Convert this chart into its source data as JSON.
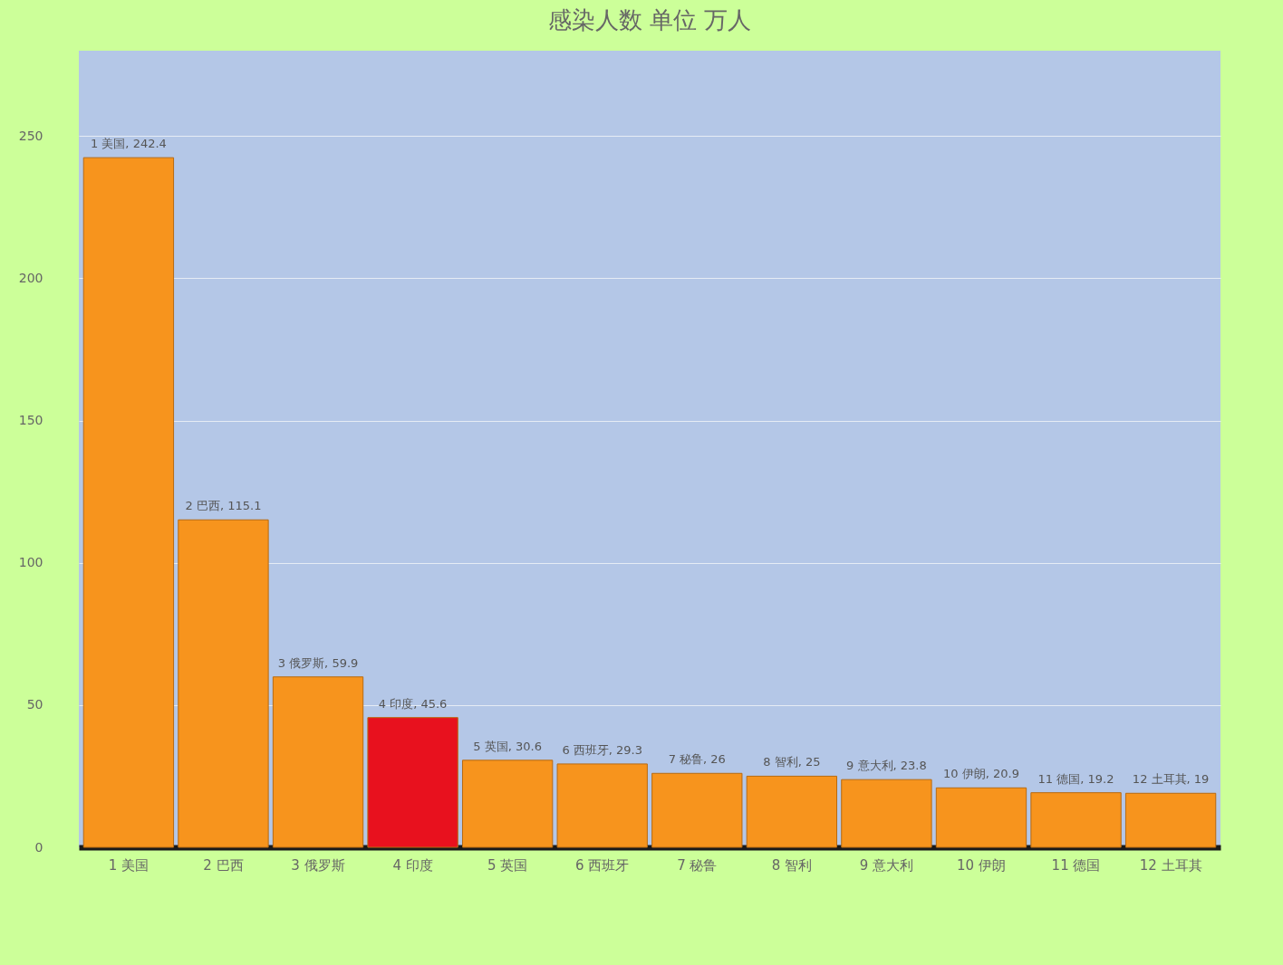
{
  "chart_data": {
    "type": "bar",
    "title": "感染人数 单位 万人",
    "categories": [
      "1 美国",
      "2 巴西",
      "3 俄罗斯",
      "4 印度",
      "5 英国",
      "6 西班牙",
      "7 秘鲁",
      "8 智利",
      "9 意大利",
      "10 伊朗",
      "11 德国",
      "12 土耳其"
    ],
    "values": [
      242.4,
      115.1,
      59.9,
      45.6,
      30.6,
      29.3,
      26,
      25,
      23.8,
      20.9,
      19.2,
      19
    ],
    "colors": [
      "#f7941d",
      "#f7941d",
      "#f7941d",
      "#e8111e",
      "#f7941d",
      "#f7941d",
      "#f7941d",
      "#f7941d",
      "#f7941d",
      "#f7941d",
      "#f7941d",
      "#f7941d"
    ],
    "value_labels": [
      "1 美国, 242.4",
      "2 巴西, 115.1",
      "3 俄罗斯, 59.9",
      "4 印度, 45.6",
      "5 英国, 30.6",
      "6 西班牙, 29.3",
      "7 秘鲁, 26",
      "8 智利, 25",
      "9 意大利, 23.8",
      "10 伊朗, 20.9",
      "11 德国, 19.2",
      "12 土耳其, 19"
    ],
    "ylim": [
      0,
      280
    ],
    "yticks": [
      0,
      50,
      100,
      150,
      200,
      250
    ],
    "grid": "y"
  }
}
